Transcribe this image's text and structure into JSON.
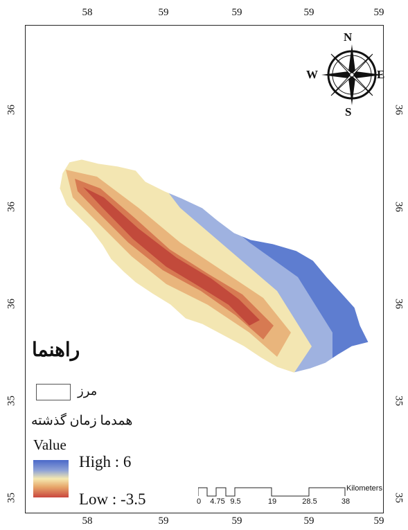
{
  "graticule": {
    "lon_top": [
      "58",
      "59",
      "59",
      "59",
      "59"
    ],
    "lon_bottom": [
      "58",
      "59",
      "59",
      "59",
      "59"
    ],
    "lat_left": [
      "36",
      "36",
      "36",
      "35",
      "35"
    ],
    "lat_right": [
      "36",
      "36",
      "36",
      "35",
      "35"
    ]
  },
  "compass": {
    "north": "N",
    "south": "S",
    "east": "E",
    "west": "W"
  },
  "legend": {
    "title": "راهنما",
    "boundary_label": "مرز",
    "layer_label": "همدما زمان گذشته",
    "value_label": "Value",
    "high_label": "High : 6",
    "low_label": "Low : -3.5",
    "colors": {
      "high": "#4a68c9",
      "mid": "#f5e9b0",
      "low": "#c9463e"
    }
  },
  "scalebar": {
    "ticks": [
      "0",
      "4.75",
      "9.5",
      "19",
      "28.5",
      "38"
    ],
    "units": "Kilometers"
  }
}
